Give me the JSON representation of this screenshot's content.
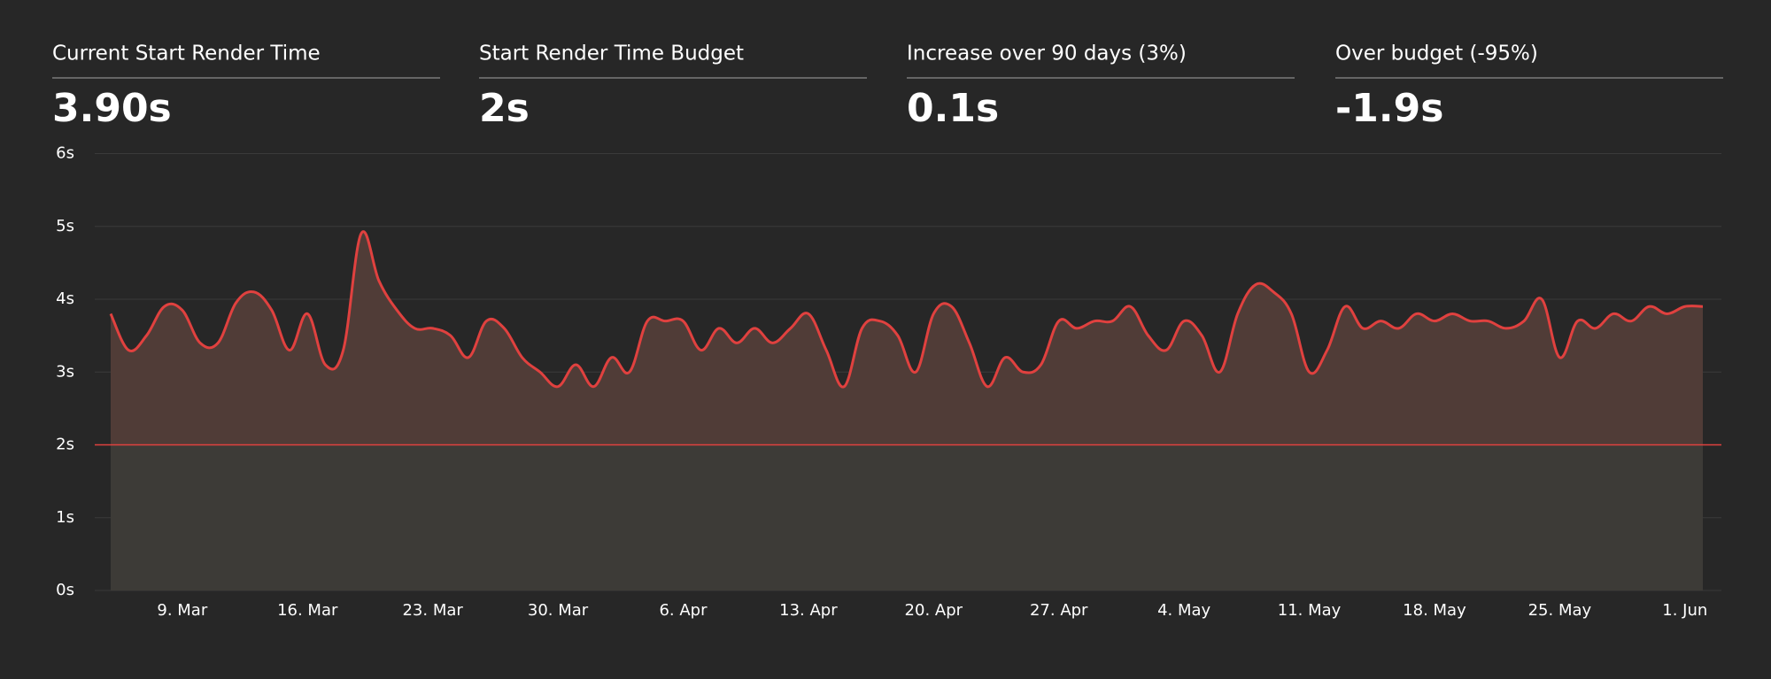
{
  "stats": [
    {
      "label": "Current Start Render Time",
      "value": "3.90s"
    },
    {
      "label": "Start Render Time Budget",
      "value": "2s"
    },
    {
      "label": "Increase over 90 days (3%)",
      "value": "0.1s"
    },
    {
      "label": "Over budget (-95%)",
      "value": "-1.9s"
    }
  ],
  "chart_data": {
    "type": "area",
    "categories": [
      null,
      null,
      null,
      null,
      "9. Mar",
      null,
      null,
      null,
      null,
      null,
      null,
      "16. Mar",
      null,
      null,
      null,
      null,
      null,
      null,
      "23. Mar",
      null,
      null,
      null,
      null,
      null,
      null,
      "30. Mar",
      null,
      null,
      null,
      null,
      null,
      null,
      "6. Apr",
      null,
      null,
      null,
      null,
      null,
      null,
      "13. Apr",
      null,
      null,
      null,
      null,
      null,
      null,
      "20. Apr",
      null,
      null,
      null,
      null,
      null,
      null,
      "27. Apr",
      null,
      null,
      null,
      null,
      null,
      null,
      "4. May",
      null,
      null,
      null,
      null,
      null,
      null,
      "11. May",
      null,
      null,
      null,
      null,
      null,
      null,
      "18. May",
      null,
      null,
      null,
      null,
      null,
      null,
      "25. May",
      null,
      null,
      null,
      null,
      null,
      null,
      "1. Jun",
      null
    ],
    "values": [
      3.8,
      3.3,
      3.5,
      3.9,
      3.85,
      3.4,
      3.4,
      3.95,
      4.1,
      3.85,
      3.3,
      3.8,
      3.1,
      3.3,
      4.9,
      4.25,
      3.85,
      3.6,
      3.6,
      3.5,
      3.2,
      3.7,
      3.6,
      3.2,
      3.0,
      2.8,
      3.1,
      2.8,
      3.2,
      3.0,
      3.7,
      3.7,
      3.7,
      3.3,
      3.6,
      3.4,
      3.6,
      3.4,
      3.6,
      3.8,
      3.3,
      2.8,
      3.6,
      3.7,
      3.5,
      3.0,
      3.8,
      3.9,
      3.4,
      2.8,
      3.2,
      3.0,
      3.1,
      3.7,
      3.6,
      3.7,
      3.7,
      3.9,
      3.5,
      3.3,
      3.7,
      3.5,
      3.0,
      3.8,
      4.2,
      4.1,
      3.8,
      3.0,
      3.3,
      3.9,
      3.6,
      3.7,
      3.6,
      3.8,
      3.7,
      3.8,
      3.7,
      3.7,
      3.6,
      3.7,
      4.0,
      3.2,
      3.7,
      3.6,
      3.8,
      3.7,
      3.9,
      3.8,
      3.9,
      3.9
    ],
    "color": "#e0413f",
    "budget": 2,
    "ylim": [
      0,
      6
    ],
    "yticks": [
      {
        "value": 0,
        "label": "0s"
      },
      {
        "value": 1,
        "label": "1s"
      },
      {
        "value": 2,
        "label": "2s"
      },
      {
        "value": 3,
        "label": "3s"
      },
      {
        "value": 4,
        "label": "4s"
      },
      {
        "value": 5,
        "label": "5s"
      },
      {
        "value": 6,
        "label": "6s"
      }
    ],
    "grid": true
  }
}
